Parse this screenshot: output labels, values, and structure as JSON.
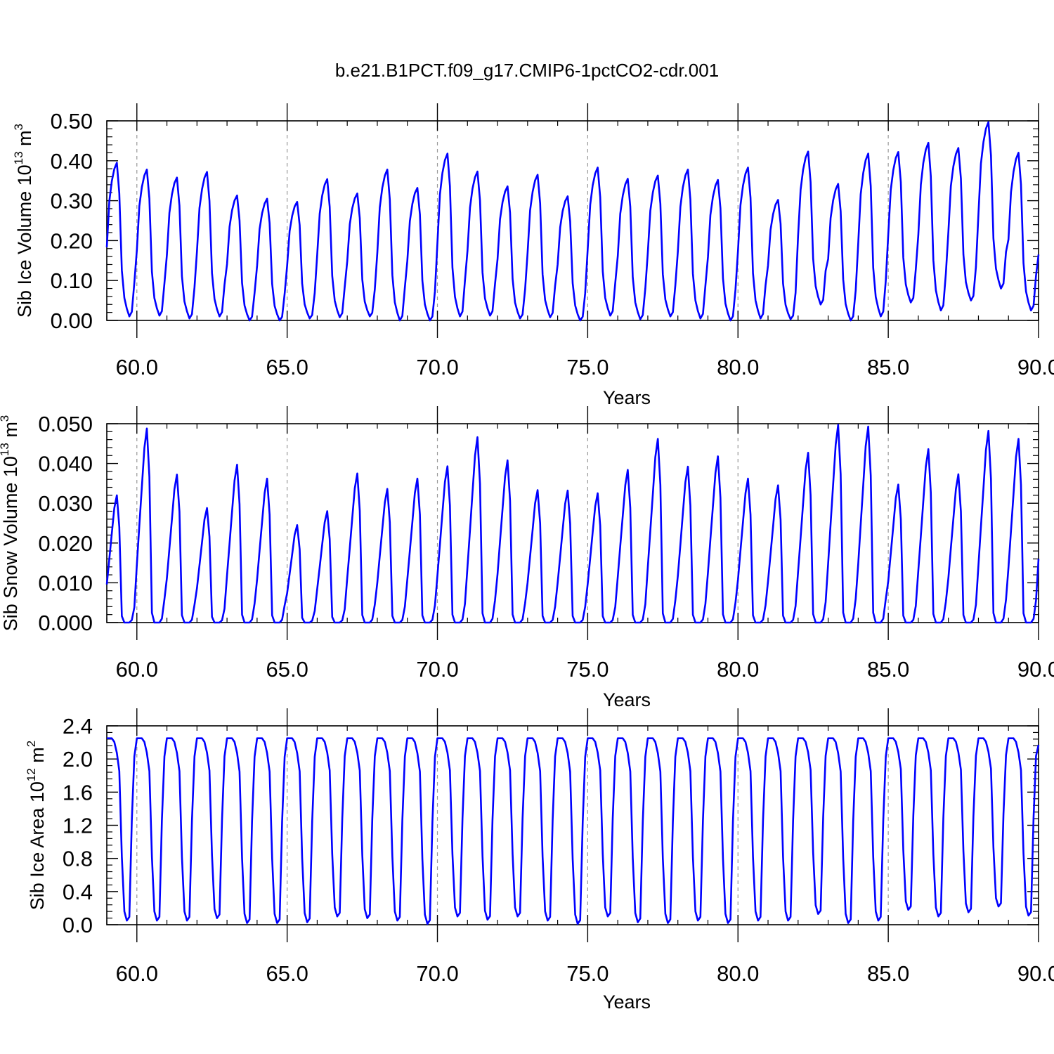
{
  "title": "b.e21.B1PCT.f09_g17.CMIP6-1pctCO2-cdr.001",
  "line_color": "#0000ff",
  "chart_data": [
    {
      "type": "line",
      "xlabel": "Years",
      "ylabel": "Sib Ice Volume 10",
      "ylabel_exp": "13",
      "ylabel_unit": " m",
      "ylabel_unit_exp": "3",
      "xlim": [
        59.0,
        90.0
      ],
      "ylim": [
        0.0,
        0.5
      ],
      "xticks": [
        60,
        65,
        70,
        75,
        80,
        85,
        90
      ],
      "xtick_labels": [
        "60.0",
        "65.0",
        "70.0",
        "75.0",
        "80.0",
        "85.0",
        "90.0"
      ],
      "yticks": [
        0.0,
        0.1,
        0.2,
        0.3,
        0.4,
        0.5
      ],
      "ytick_labels": [
        "0.00",
        "0.10",
        "0.20",
        "0.30",
        "0.40",
        "0.50"
      ],
      "grid": "vertical dashed at major x ticks",
      "peaks": [
        0.395,
        0.378,
        0.358,
        0.372,
        0.313,
        0.305,
        0.297,
        0.354,
        0.318,
        0.378,
        0.332,
        0.418,
        0.373,
        0.336,
        0.365,
        0.311,
        0.383,
        0.355,
        0.363,
        0.378,
        0.352,
        0.383,
        0.302,
        0.423,
        0.342,
        0.418,
        0.422,
        0.445,
        0.432,
        0.497,
        0.42
      ],
      "troughs": [
        0.01,
        0.012,
        0.005,
        0.01,
        0.0,
        0.0,
        0.005,
        0.008,
        0.01,
        0.0,
        0.0,
        0.01,
        0.012,
        0.005,
        0.008,
        0.0,
        0.012,
        0.003,
        0.01,
        0.005,
        0.0,
        0.005,
        0.003,
        0.04,
        0.0,
        0.01,
        0.045,
        0.025,
        0.05,
        0.08,
        0.025
      ],
      "series": [
        {
          "values": []
        }
      ]
    },
    {
      "type": "line",
      "xlabel": "Years",
      "ylabel": "Sib Snow Volume 10",
      "ylabel_exp": "13",
      "ylabel_unit": " m",
      "ylabel_unit_exp": "3",
      "xlim": [
        59.0,
        90.0
      ],
      "ylim": [
        0.0,
        0.05
      ],
      "xticks": [
        60,
        65,
        70,
        75,
        80,
        85,
        90
      ],
      "xtick_labels": [
        "60.0",
        "65.0",
        "70.0",
        "75.0",
        "80.0",
        "85.0",
        "90.0"
      ],
      "yticks": [
        0.0,
        0.01,
        0.02,
        0.03,
        0.04,
        0.05
      ],
      "ytick_labels": [
        "0.000",
        "0.010",
        "0.020",
        "0.030",
        "0.040",
        "0.050"
      ],
      "grid": "vertical dashed at major x ticks",
      "peaks": [
        0.032,
        0.0488,
        0.0372,
        0.0288,
        0.0397,
        0.0362,
        0.0245,
        0.028,
        0.0375,
        0.0336,
        0.0362,
        0.0393,
        0.0466,
        0.0408,
        0.0333,
        0.0332,
        0.0325,
        0.0384,
        0.0462,
        0.0392,
        0.0418,
        0.0362,
        0.0345,
        0.0427,
        0.0497,
        0.0493,
        0.0347,
        0.0436,
        0.0373,
        0.0482,
        0.0462
      ],
      "troughs": [
        0.0,
        0.0,
        0.0,
        0.0,
        0.0,
        0.0,
        0.0,
        0.0,
        0.0,
        0.0,
        0.0,
        0.0,
        0.0,
        0.0,
        0.0,
        0.0,
        0.0,
        0.0,
        0.0,
        0.0,
        0.0,
        0.0,
        0.0,
        0.0,
        0.0,
        0.0,
        0.0,
        0.0,
        0.0,
        0.0,
        0.0
      ],
      "series": [
        {
          "values": []
        }
      ]
    },
    {
      "type": "line",
      "xlabel": "Years",
      "ylabel": "Sib Ice Area 10",
      "ylabel_exp": "12",
      "ylabel_unit": " m",
      "ylabel_unit_exp": "2",
      "xlim": [
        59.0,
        90.0
      ],
      "ylim": [
        0.0,
        2.4
      ],
      "xticks": [
        60,
        65,
        70,
        75,
        80,
        85,
        90
      ],
      "xtick_labels": [
        "60.0",
        "65.0",
        "70.0",
        "75.0",
        "80.0",
        "85.0",
        "90.0"
      ],
      "yticks": [
        0.0,
        0.4,
        0.8,
        1.2,
        1.6,
        2.0,
        2.4
      ],
      "ytick_labels": [
        "0.0",
        "0.4",
        "0.8",
        "1.2",
        "1.6",
        "2.0",
        "2.4"
      ],
      "grid": "vertical dashed at major x ticks",
      "peaks": [
        2.25,
        2.25,
        2.25,
        2.25,
        2.25,
        2.25,
        2.25,
        2.25,
        2.25,
        2.25,
        2.25,
        2.25,
        2.25,
        2.25,
        2.25,
        2.25,
        2.25,
        2.25,
        2.25,
        2.25,
        2.25,
        2.25,
        2.25,
        2.25,
        2.25,
        2.25,
        2.25,
        2.25,
        2.25,
        2.25,
        2.25
      ],
      "troughs": [
        0.05,
        0.05,
        0.05,
        0.08,
        0.02,
        0.02,
        0.03,
        0.1,
        0.08,
        0.05,
        0.01,
        0.1,
        0.06,
        0.1,
        0.05,
        0.01,
        0.1,
        0.03,
        0.02,
        0.05,
        0.02,
        0.05,
        0.05,
        0.13,
        0.02,
        0.05,
        0.18,
        0.1,
        0.15,
        0.22,
        0.11
      ],
      "series": [
        {
          "values": []
        }
      ]
    }
  ]
}
